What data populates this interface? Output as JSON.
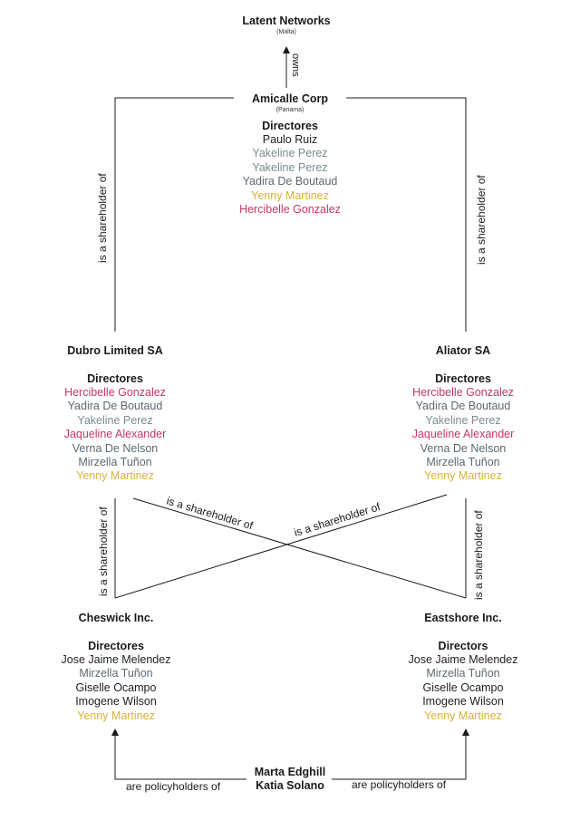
{
  "palette": {
    "default": "#1f1f1f",
    "grey": "#7a8a90",
    "slate": "#5b6870",
    "yellow": "#d9b13c",
    "magenta": "#c8356a",
    "line": "#1a1a1a"
  },
  "entities": {
    "latent": {
      "name": "Latent Networks",
      "jurisdiction": "(Malta)"
    },
    "amicalle": {
      "name": "Amicalle Corp",
      "jurisdiction": "(Panama)",
      "directors_heading": "Directores",
      "directors": [
        {
          "name": "Paulo Ruiz",
          "tone": "default"
        },
        {
          "name": "Yakeline Perez",
          "tone": "grey"
        },
        {
          "name": "Yakeline Perez",
          "tone": "grey"
        },
        {
          "name": "Yadira De Boutaud",
          "tone": "slate"
        },
        {
          "name": "Yenny Martinez",
          "tone": "yellow"
        },
        {
          "name": "Hercibelle Gonzalez",
          "tone": "magenta"
        }
      ]
    },
    "dubro": {
      "name": "Dubro Limited SA",
      "directors_heading": "Directores",
      "directors": [
        {
          "name": "Hercibelle Gonzalez",
          "tone": "magenta"
        },
        {
          "name": "Yadira De Boutaud",
          "tone": "slate"
        },
        {
          "name": "Yakeline Perez",
          "tone": "grey"
        },
        {
          "name": "Jaqueline Alexander",
          "tone": "magenta"
        },
        {
          "name": "Verna De Nelson",
          "tone": "slate"
        },
        {
          "name": "Mirzella Tuñon",
          "tone": "slate"
        },
        {
          "name": "Yenny Martinez",
          "tone": "yellow"
        }
      ]
    },
    "aliator": {
      "name": "Aliator SA",
      "directors_heading": "Directores",
      "directors": [
        {
          "name": "Hercibelle Gonzalez",
          "tone": "magenta"
        },
        {
          "name": "Yadira De Boutaud",
          "tone": "slate"
        },
        {
          "name": "Yakeline Perez",
          "tone": "grey"
        },
        {
          "name": "Jaqueline Alexander",
          "tone": "magenta"
        },
        {
          "name": "Verna De Nelson",
          "tone": "slate"
        },
        {
          "name": "Mirzella Tuñon",
          "tone": "slate"
        },
        {
          "name": "Yenny Martinez",
          "tone": "yellow"
        }
      ]
    },
    "cheswick": {
      "name": "Cheswick Inc.",
      "directors_heading": "Directores",
      "directors": [
        {
          "name": "Jose Jaime Melendez",
          "tone": "default"
        },
        {
          "name": "Mirzella Tuñon",
          "tone": "slate"
        },
        {
          "name": "Giselle Ocampo",
          "tone": "default"
        },
        {
          "name": "Imogene Wilson",
          "tone": "default"
        },
        {
          "name": "Yenny Martinez",
          "tone": "yellow"
        }
      ]
    },
    "eastshore": {
      "name": "Eastshore Inc.",
      "directors_heading": "Directors",
      "directors": [
        {
          "name": "Jose Jaime Melendez",
          "tone": "default"
        },
        {
          "name": "Mirzella Tuñon",
          "tone": "slate"
        },
        {
          "name": "Giselle Ocampo",
          "tone": "default"
        },
        {
          "name": "Imogene Wilson",
          "tone": "default"
        },
        {
          "name": "Yenny Martinez",
          "tone": "yellow"
        }
      ]
    }
  },
  "persons": [
    "Marta Edghill",
    "Katia Solano"
  ],
  "relations": {
    "owns": "owns",
    "shareholder": "is a shareholder of",
    "policyholders": "are policyholders of"
  }
}
